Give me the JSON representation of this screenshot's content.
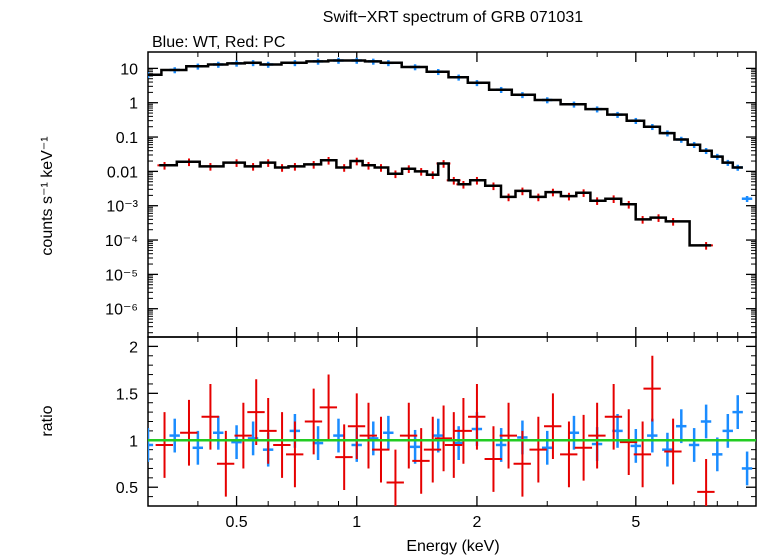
{
  "title": "Swift−XRT spectrum of GRB 071031",
  "subtitle": "Blue: WT, Red: PC",
  "colors": {
    "wt": "#1a8cff",
    "pc": "#e60000",
    "model": "#000000",
    "unity": "#22cc22",
    "axis": "#000000"
  },
  "chart_data": [
    {
      "type": "scatter",
      "panel": "spectrum",
      "xlabel": "Energy (keV)",
      "ylabel": "counts s⁻¹ keV⁻¹",
      "xscale": "log",
      "yscale": "log",
      "xlim": [
        0.3,
        10
      ],
      "ylim": [
        1.5e-07,
        30
      ],
      "ytick_labels": [
        "10",
        "1",
        "0.1",
        "0.01",
        "10⁻³",
        "10⁻⁴",
        "10⁻⁵",
        "10⁻⁶"
      ],
      "series": [
        {
          "name": "WT",
          "x": [
            0.3,
            0.35,
            0.4,
            0.45,
            0.5,
            0.55,
            0.6,
            0.7,
            0.8,
            0.9,
            1.0,
            1.1,
            1.2,
            1.4,
            1.6,
            1.8,
            2.0,
            2.3,
            2.6,
            3.0,
            3.5,
            4.0,
            4.5,
            5.0,
            5.5,
            6.0,
            6.5,
            7.0,
            7.5,
            8.0,
            8.5,
            9.0,
            9.5
          ],
          "y": [
            6.5,
            9.0,
            11.5,
            13.0,
            14.0,
            14.5,
            13.0,
            14.5,
            16.0,
            17.0,
            17.0,
            16.0,
            14.5,
            11.0,
            8.0,
            5.5,
            3.8,
            2.4,
            1.7,
            1.2,
            0.9,
            0.65,
            0.45,
            0.3,
            0.2,
            0.13,
            0.085,
            0.06,
            0.04,
            0.027,
            0.018,
            0.013,
            0.0016
          ]
        },
        {
          "name": "PC",
          "x": [
            0.33,
            0.38,
            0.43,
            0.5,
            0.55,
            0.6,
            0.65,
            0.7,
            0.78,
            0.85,
            0.93,
            1.0,
            1.07,
            1.15,
            1.25,
            1.35,
            1.45,
            1.55,
            1.65,
            1.75,
            1.85,
            2.0,
            2.2,
            2.4,
            2.6,
            2.85,
            3.1,
            3.4,
            3.7,
            4.0,
            4.4,
            4.8,
            5.2,
            5.7,
            6.2,
            7.5
          ],
          "y": [
            0.015,
            0.019,
            0.014,
            0.018,
            0.014,
            0.018,
            0.013,
            0.014,
            0.016,
            0.021,
            0.013,
            0.02,
            0.015,
            0.013,
            0.0085,
            0.012,
            0.01,
            0.008,
            0.017,
            0.0055,
            0.0042,
            0.0055,
            0.0038,
            0.0018,
            0.0027,
            0.0018,
            0.0025,
            0.0019,
            0.0024,
            0.0014,
            0.0016,
            0.0011,
            0.0004,
            0.00045,
            0.00035,
            7e-05
          ]
        }
      ]
    },
    {
      "type": "scatter",
      "panel": "ratio",
      "xlabel": "Energy (keV)",
      "ylabel": "ratio",
      "xscale": "log",
      "xlim": [
        0.3,
        10
      ],
      "ylim": [
        0.3,
        2.1
      ],
      "xtick_labels": [
        "0.5",
        "1",
        "2",
        "5"
      ],
      "ytick_labels": [
        "0.5",
        "1",
        "1.5",
        "2"
      ],
      "reference_line": 1.0,
      "series": [
        {
          "name": "WT",
          "x": [
            0.3,
            0.35,
            0.4,
            0.45,
            0.5,
            0.55,
            0.6,
            0.7,
            0.8,
            0.9,
            1.0,
            1.1,
            1.2,
            1.4,
            1.6,
            1.8,
            2.0,
            2.3,
            2.6,
            3.0,
            3.5,
            4.0,
            4.5,
            5.0,
            5.5,
            6.0,
            6.5,
            7.0,
            7.5,
            8.0,
            8.5,
            9.0,
            9.5
          ],
          "y": [
            0.95,
            1.05,
            0.92,
            1.08,
            0.98,
            1.02,
            0.9,
            1.1,
            0.97,
            1.05,
            0.95,
            1.02,
            1.08,
            0.93,
            1.05,
            0.97,
            1.12,
            0.95,
            1.03,
            0.92,
            1.08,
            0.96,
            1.1,
            0.94,
            1.05,
            0.9,
            1.15,
            0.95,
            1.2,
            0.85,
            1.1,
            1.3,
            0.7
          ]
        },
        {
          "name": "PC",
          "x": [
            0.33,
            0.38,
            0.43,
            0.47,
            0.52,
            0.56,
            0.6,
            0.65,
            0.7,
            0.78,
            0.85,
            0.93,
            1.0,
            1.07,
            1.15,
            1.25,
            1.35,
            1.45,
            1.55,
            1.65,
            1.75,
            1.85,
            2.0,
            2.2,
            2.4,
            2.6,
            2.85,
            3.1,
            3.4,
            3.7,
            4.0,
            4.4,
            4.8,
            5.2,
            5.5,
            6.2,
            7.5
          ],
          "y": [
            0.95,
            1.08,
            1.25,
            0.75,
            1.05,
            1.3,
            1.1,
            0.95,
            0.85,
            1.2,
            1.35,
            0.82,
            1.15,
            1.05,
            0.9,
            0.55,
            1.05,
            0.78,
            0.9,
            1.02,
            0.95,
            1.1,
            1.25,
            0.8,
            1.05,
            0.75,
            0.9,
            1.15,
            0.85,
            0.92,
            1.05,
            1.25,
            0.98,
            0.85,
            1.55,
            0.88,
            0.45
          ]
        }
      ]
    }
  ]
}
